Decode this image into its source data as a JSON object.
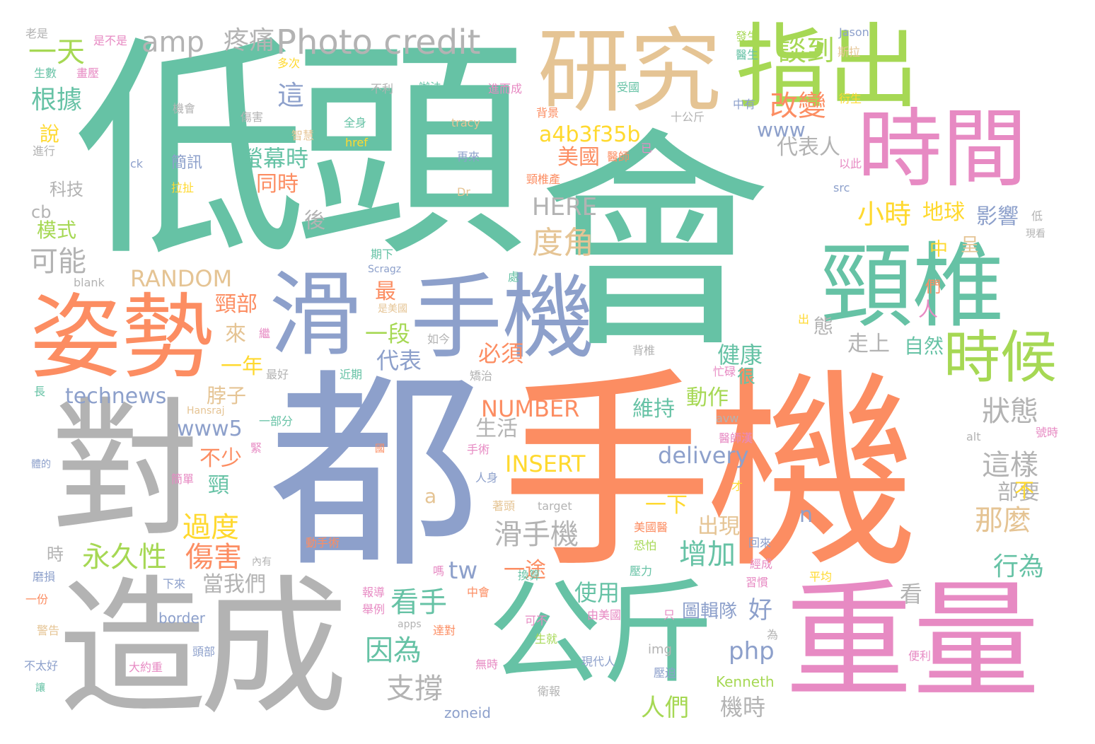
{
  "palette": {
    "green": "#66c2a5",
    "orange": "#fc8d62",
    "blue": "#8da0cb",
    "pink": "#e78ac3",
    "lime": "#a6d854",
    "yellow": "#ffd92f",
    "tan": "#e5c494",
    "gray": "#b3b3b3"
  },
  "words": [
    {
      "text": "低頭",
      "color": "green"
    },
    {
      "text": "會",
      "color": "green"
    },
    {
      "text": "手機",
      "color": "orange"
    },
    {
      "text": "都",
      "color": "blue"
    },
    {
      "text": "造成",
      "color": "gray"
    },
    {
      "text": "對",
      "color": "gray"
    },
    {
      "text": "研究",
      "color": "tan"
    },
    {
      "text": "指出",
      "color": "lime"
    },
    {
      "text": "時間",
      "color": "pink"
    },
    {
      "text": "頸椎",
      "color": "green"
    },
    {
      "text": "姿勢",
      "color": "orange"
    },
    {
      "text": "滑",
      "color": "blue"
    },
    {
      "text": "手機",
      "color": "blue"
    },
    {
      "text": "公斤",
      "color": "green"
    },
    {
      "text": "重量",
      "color": "pink"
    },
    {
      "text": "時候",
      "color": "lime"
    },
    {
      "text": "Photo credit",
      "color": "gray"
    },
    {
      "text": "amp",
      "color": "gray"
    },
    {
      "text": "疼痛",
      "color": "gray"
    },
    {
      "text": "一天",
      "color": "lime"
    },
    {
      "text": "談到",
      "color": "lime"
    },
    {
      "text": "改變",
      "color": "orange"
    },
    {
      "text": "根據",
      "color": "green"
    },
    {
      "text": "這",
      "color": "blue"
    },
    {
      "text": "www",
      "color": "blue"
    },
    {
      "text": "a4b3f35b",
      "color": "yellow"
    },
    {
      "text": "代表人",
      "color": "gray"
    },
    {
      "text": "美國",
      "color": "orange"
    },
    {
      "text": "螢幕時",
      "color": "green"
    },
    {
      "text": "同時",
      "color": "orange"
    },
    {
      "text": "HERE",
      "color": "gray"
    },
    {
      "text": "度角",
      "color": "tan"
    },
    {
      "text": "小時",
      "color": "yellow"
    },
    {
      "text": "地球",
      "color": "yellow"
    },
    {
      "text": "影響",
      "color": "blue"
    },
    {
      "text": "可能",
      "color": "gray"
    },
    {
      "text": "RANDOM",
      "color": "tan"
    },
    {
      "text": "頸部",
      "color": "orange"
    },
    {
      "text": "來",
      "color": "tan"
    },
    {
      "text": "一段",
      "color": "lime"
    },
    {
      "text": "代表",
      "color": "blue"
    },
    {
      "text": "必須",
      "color": "orange"
    },
    {
      "text": "健康",
      "color": "green"
    },
    {
      "text": "走上",
      "color": "gray"
    },
    {
      "text": "自然",
      "color": "green"
    },
    {
      "text": "一年",
      "color": "yellow"
    },
    {
      "text": "technews",
      "color": "blue"
    },
    {
      "text": "脖子",
      "color": "tan"
    },
    {
      "text": "NUMBER",
      "color": "orange"
    },
    {
      "text": "維持",
      "color": "green"
    },
    {
      "text": "動作",
      "color": "lime"
    },
    {
      "text": "狀態",
      "color": "gray"
    },
    {
      "text": "www5",
      "color": "blue"
    },
    {
      "text": "生活",
      "color": "gray"
    },
    {
      "text": "delivery",
      "color": "blue"
    },
    {
      "text": "這樣",
      "color": "gray"
    },
    {
      "text": "不少",
      "color": "orange"
    },
    {
      "text": "INSERT",
      "color": "yellow"
    },
    {
      "text": "部要",
      "color": "gray"
    },
    {
      "text": "頸",
      "color": "green"
    },
    {
      "text": "過度",
      "color": "yellow"
    },
    {
      "text": "滑手機",
      "color": "gray"
    },
    {
      "text": "一下",
      "color": "yellow"
    },
    {
      "text": "出現",
      "color": "tan"
    },
    {
      "text": "那麼",
      "color": "tan"
    },
    {
      "text": "永久性",
      "color": "lime"
    },
    {
      "text": "傷害",
      "color": "orange"
    },
    {
      "text": "增加",
      "color": "green"
    },
    {
      "text": "tw",
      "color": "blue"
    },
    {
      "text": "行為",
      "color": "green"
    },
    {
      "text": "當我們",
      "color": "gray"
    },
    {
      "text": "一途",
      "color": "orange"
    },
    {
      "text": "看手",
      "color": "green"
    },
    {
      "text": "使用",
      "color": "green"
    },
    {
      "text": "圖輯隊",
      "color": "blue"
    },
    {
      "text": "好",
      "color": "blue"
    },
    {
      "text": "因為",
      "color": "green"
    },
    {
      "text": "php",
      "color": "blue"
    },
    {
      "text": "支撐",
      "color": "gray"
    },
    {
      "text": "人們",
      "color": "lime"
    },
    {
      "text": "機時",
      "color": "gray"
    },
    {
      "text": "Kenneth",
      "color": "lime"
    },
    {
      "text": "zoneid",
      "color": "blue"
    },
    {
      "text": "科技",
      "color": "gray"
    },
    {
      "text": "cb",
      "color": "gray"
    },
    {
      "text": "模式",
      "color": "lime"
    },
    {
      "text": "說",
      "color": "yellow"
    },
    {
      "text": "後",
      "color": "gray"
    },
    {
      "text": "簡訊",
      "color": "blue"
    },
    {
      "text": "border",
      "color": "blue"
    },
    {
      "text": "時",
      "color": "gray"
    },
    {
      "text": "a",
      "color": "tan"
    },
    {
      "text": "n",
      "color": "blue"
    },
    {
      "text": "中",
      "color": "yellow"
    },
    {
      "text": "人",
      "color": "pink"
    },
    {
      "text": "們",
      "color": "orange"
    },
    {
      "text": "很",
      "color": "green"
    },
    {
      "text": "看",
      "color": "gray"
    },
    {
      "text": "呈",
      "color": "tan"
    },
    {
      "text": "不",
      "color": "yellow"
    },
    {
      "text": "態",
      "color": "gray"
    },
    {
      "text": "最",
      "color": "orange"
    },
    {
      "text": "老是",
      "color": "gray"
    },
    {
      "text": "是不是",
      "color": "pink"
    },
    {
      "text": "生數",
      "color": "green"
    },
    {
      "text": "畫壓",
      "color": "pink"
    },
    {
      "text": "多次",
      "color": "yellow"
    },
    {
      "text": "不利",
      "color": "gray"
    },
    {
      "text": "辦法",
      "color": "green"
    },
    {
      "text": "進而成",
      "color": "pink"
    },
    {
      "text": "機會",
      "color": "gray"
    },
    {
      "text": "傷害",
      "color": "gray"
    },
    {
      "text": "智慧",
      "color": "tan"
    },
    {
      "text": "全身",
      "color": "green"
    },
    {
      "text": "tracy",
      "color": "tan"
    },
    {
      "text": "進行",
      "color": "gray"
    },
    {
      "text": "ck",
      "color": "blue"
    },
    {
      "text": "href",
      "color": "yellow"
    },
    {
      "text": "再來",
      "color": "blue"
    },
    {
      "text": "拉扯",
      "color": "yellow"
    },
    {
      "text": "Dr",
      "color": "tan"
    },
    {
      "text": "發生",
      "color": "lime"
    },
    {
      "text": "醫生",
      "color": "green"
    },
    {
      "text": "Jason",
      "color": "blue"
    },
    {
      "text": "斯拉",
      "color": "tan"
    },
    {
      "text": "背景",
      "color": "orange"
    },
    {
      "text": "十公斤",
      "color": "gray"
    },
    {
      "text": "中有",
      "color": "blue"
    },
    {
      "text": "衍生",
      "color": "yellow"
    },
    {
      "text": "受國",
      "color": "green"
    },
    {
      "text": "醫師",
      "color": "orange"
    },
    {
      "text": "已",
      "color": "pink"
    },
    {
      "text": "以此",
      "color": "pink"
    },
    {
      "text": "頸椎產",
      "color": "orange"
    },
    {
      "text": "src",
      "color": "blue"
    },
    {
      "text": "低",
      "color": "gray"
    },
    {
      "text": "現看",
      "color": "gray"
    },
    {
      "text": "期下",
      "color": "green"
    },
    {
      "text": "Scragz",
      "color": "blue"
    },
    {
      "text": "處",
      "color": "green"
    },
    {
      "text": "blank",
      "color": "gray"
    },
    {
      "text": "是美國",
      "color": "tan"
    },
    {
      "text": "出",
      "color": "yellow"
    },
    {
      "text": "繼",
      "color": "pink"
    },
    {
      "text": "如今",
      "color": "gray"
    },
    {
      "text": "背椎",
      "color": "gray"
    },
    {
      "text": "最好",
      "color": "gray"
    },
    {
      "text": "近期",
      "color": "green"
    },
    {
      "text": "矯治",
      "color": "gray"
    },
    {
      "text": "忙碌",
      "color": "pink"
    },
    {
      "text": "長",
      "color": "green"
    },
    {
      "text": "Hansraj",
      "color": "tan"
    },
    {
      "text": "一部分",
      "color": "green"
    },
    {
      "text": "avw",
      "color": "gray"
    },
    {
      "text": "醫師漢",
      "color": "pink"
    },
    {
      "text": "號時",
      "color": "pink"
    },
    {
      "text": "alt",
      "color": "gray"
    },
    {
      "text": "體的",
      "color": "blue"
    },
    {
      "text": "緊",
      "color": "pink"
    },
    {
      "text": "國",
      "color": "orange"
    },
    {
      "text": "手術",
      "color": "pink"
    },
    {
      "text": "人身",
      "color": "blue"
    },
    {
      "text": "簡單",
      "color": "pink"
    },
    {
      "text": "著頭",
      "color": "tan"
    },
    {
      "text": "target",
      "color": "gray"
    },
    {
      "text": "才",
      "color": "yellow"
    },
    {
      "text": "美國醫",
      "color": "orange"
    },
    {
      "text": "動手術",
      "color": "orange"
    },
    {
      "text": "恐怕",
      "color": "lime"
    },
    {
      "text": "回來",
      "color": "blue"
    },
    {
      "text": "內有",
      "color": "gray"
    },
    {
      "text": "磨損",
      "color": "blue"
    },
    {
      "text": "下來",
      "color": "blue"
    },
    {
      "text": "嗎",
      "color": "pink"
    },
    {
      "text": "換算",
      "color": "green"
    },
    {
      "text": "壓力",
      "color": "green"
    },
    {
      "text": "經成",
      "color": "pink"
    },
    {
      "text": "平均",
      "color": "yellow"
    },
    {
      "text": "一份",
      "color": "orange"
    },
    {
      "text": "報導",
      "color": "pink"
    },
    {
      "text": "中會",
      "color": "orange"
    },
    {
      "text": "習慣",
      "color": "pink"
    },
    {
      "text": "舉例",
      "color": "pink"
    },
    {
      "text": "可不",
      "color": "pink"
    },
    {
      "text": "由美國",
      "color": "pink"
    },
    {
      "text": "只",
      "color": "pink"
    },
    {
      "text": "警告",
      "color": "tan"
    },
    {
      "text": "apps",
      "color": "gray"
    },
    {
      "text": "達對",
      "color": "orange"
    },
    {
      "text": "生就",
      "color": "lime"
    },
    {
      "text": "為",
      "color": "gray"
    },
    {
      "text": "不太好",
      "color": "blue"
    },
    {
      "text": "大約重",
      "color": "pink"
    },
    {
      "text": "頭部",
      "color": "blue"
    },
    {
      "text": "img",
      "color": "gray"
    },
    {
      "text": "無時",
      "color": "pink"
    },
    {
      "text": "現代人",
      "color": "blue"
    },
    {
      "text": "壓迫",
      "color": "blue"
    },
    {
      "text": "便利",
      "color": "pink"
    },
    {
      "text": "讓",
      "color": "green"
    },
    {
      "text": "衛報",
      "color": "gray"
    }
  ]
}
